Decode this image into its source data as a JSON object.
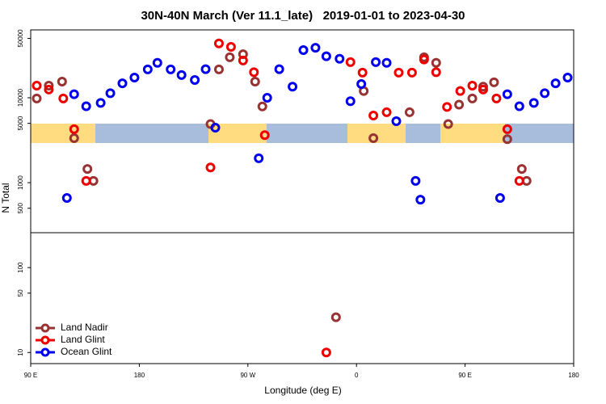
{
  "chart_data": {
    "type": "scatter",
    "title": "30N-40N March (Ver 11.1_late)   2019-01-01 to 2023-04-30",
    "x_label": "Longitude (deg E)",
    "y_label": "N Total",
    "xlim": [
      90,
      540
    ],
    "xticks": [
      {
        "value": 90,
        "label": "90 E"
      },
      180,
      {
        "value": 270,
        "label": "90 W"
      },
      {
        "value": 360,
        "label": "0"
      },
      {
        "value": 450,
        "label": "90 E"
      },
      180
    ],
    "ylim": [
      7.4,
      63000
    ],
    "y_log": true,
    "yticks": [
      10,
      50,
      100,
      500,
      1000,
      5000,
      10000,
      50000
    ],
    "legend": "bottomleft",
    "series": [
      {
        "name": "Land Nadir",
        "color": "#993333",
        "x": [
          95,
          105,
          116,
          126,
          137,
          142,
          239,
          246,
          255,
          266,
          276,
          282,
          343,
          366,
          374,
          404,
          416,
          426,
          436,
          445,
          456,
          465,
          474,
          485,
          497,
          501
        ],
        "values": [
          9800,
          13900,
          15500,
          3340,
          1450,
          1050,
          4900,
          21600,
          30000,
          32600,
          15500,
          7900,
          26,
          12000,
          3340,
          6750,
          30000,
          25800,
          4900,
          8300,
          9800,
          13500,
          15200,
          3250,
          1450,
          1050
        ]
      },
      {
        "name": "Land Glint",
        "color": "#ee0000",
        "x": [
          95,
          105,
          117,
          126,
          136,
          239,
          246,
          256,
          266,
          275,
          284,
          335,
          355,
          365,
          374,
          385,
          395,
          406,
          416,
          426,
          435,
          446,
          456,
          465,
          476,
          485,
          495
        ],
        "values": [
          13900,
          12500,
          9800,
          4270,
          1050,
          1510,
          43600,
          39800,
          27500,
          20000,
          3630,
          10,
          26300,
          19800,
          6170,
          6750,
          19800,
          19800,
          28200,
          20000,
          7800,
          12000,
          13900,
          12500,
          9800,
          4270,
          1050
        ]
      },
      {
        "name": "Ocean Glint",
        "color": "#0000ee",
        "x": [
          120,
          126,
          136,
          148,
          156,
          166,
          176,
          187,
          195,
          206,
          215,
          226,
          235,
          243,
          279,
          286,
          296,
          307,
          316,
          326,
          335,
          346,
          355,
          364,
          376,
          385,
          393,
          409,
          413,
          479,
          485,
          495,
          507,
          516,
          525,
          535
        ],
        "values": [
          660,
          11000,
          7950,
          8700,
          11300,
          14800,
          17300,
          21600,
          25800,
          21600,
          18500,
          16200,
          21700,
          4450,
          1940,
          10000,
          21700,
          13500,
          36400,
          38800,
          30800,
          28800,
          9100,
          14500,
          26300,
          25800,
          5300,
          1050,
          630,
          660,
          11000,
          7950,
          8700,
          11300,
          14800,
          17300
        ]
      }
    ]
  }
}
